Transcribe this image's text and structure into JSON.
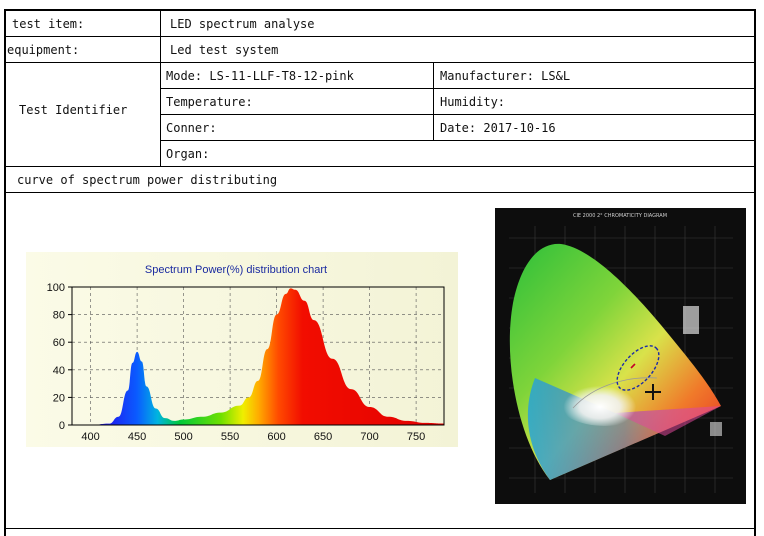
{
  "table": {
    "test_item_label": "test item:",
    "test_item_value": "LED spectrum analyse",
    "equipment_label": "equipment:",
    "equipment_value": "Led test system",
    "identifier_label": "Test Identifier",
    "mode": "Mode: LS-11-LLF-T8-12-pink",
    "manufacturer": "Manufacturer: LS&L",
    "temperature": "Temperature:",
    "humidity": "Humidity:",
    "conner": "Conner:",
    "date": "Date: 2017-10-16",
    "organ": "Organ:",
    "curve_heading": "curve of spectrum power distributing"
  },
  "cie_title": "CIE 2000 2° CHROMATICITY DIAGRAM",
  "chart_data": {
    "type": "area",
    "title": "Spectrum Power(%) distribution chart",
    "xlabel": "",
    "ylabel": "",
    "xlim": [
      380,
      780
    ],
    "ylim": [
      0,
      100
    ],
    "x_ticks": [
      "400",
      "450",
      "500",
      "550",
      "600",
      "650",
      "700",
      "750"
    ],
    "y_ticks": [
      "0",
      "20",
      "40",
      "60",
      "80",
      "100"
    ],
    "grid": true,
    "x": [
      380,
      400,
      420,
      430,
      440,
      445,
      450,
      455,
      460,
      470,
      480,
      490,
      500,
      520,
      540,
      560,
      570,
      580,
      590,
      600,
      610,
      615,
      620,
      630,
      640,
      660,
      680,
      700,
      720,
      740,
      760,
      780
    ],
    "values": [
      0,
      0,
      1,
      6,
      25,
      45,
      53,
      46,
      28,
      12,
      5,
      3,
      4,
      6,
      9,
      14,
      20,
      32,
      55,
      80,
      95,
      99,
      98,
      90,
      76,
      48,
      26,
      13,
      6,
      3,
      1.5,
      1
    ]
  }
}
